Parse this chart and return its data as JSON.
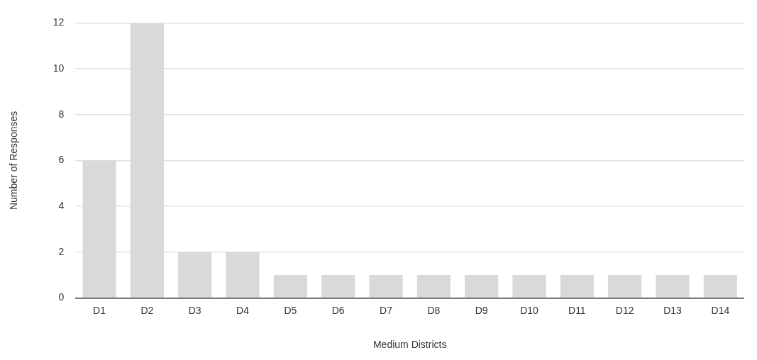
{
  "chart_data": {
    "type": "bar",
    "xlabel": "Medium Districts",
    "ylabel": "Number of Responses",
    "categories": [
      "D1",
      "D2",
      "D3",
      "D4",
      "D5",
      "D6",
      "D7",
      "D8",
      "D9",
      "D10",
      "D11",
      "D12",
      "D13",
      "D14"
    ],
    "values": [
      6,
      12,
      2,
      2,
      1,
      1,
      1,
      1,
      1,
      1,
      1,
      1,
      1,
      1
    ],
    "color": "#d9d9d9",
    "ylim": [
      0,
      12
    ],
    "yticks": [
      0,
      2,
      4,
      6,
      8,
      10,
      12
    ],
    "grid": "y",
    "legend": false
  }
}
